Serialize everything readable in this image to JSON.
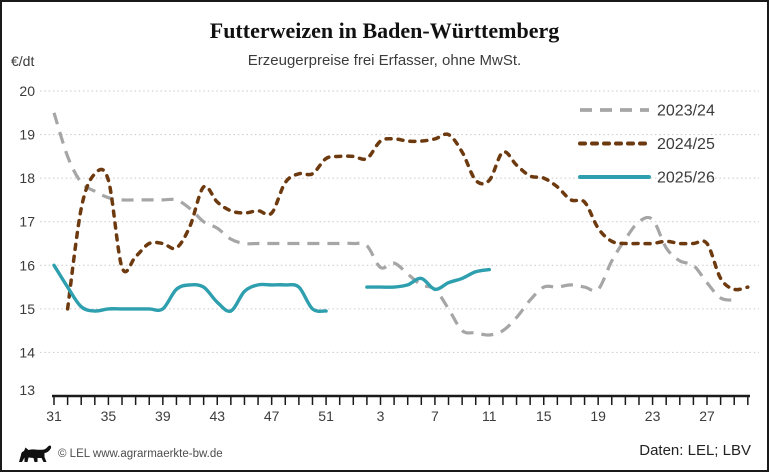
{
  "header": {
    "title": "Futterweizen in Baden-Württemberg",
    "subtitle": "Erzeugerpreise frei Erfasser, ohne MwSt.",
    "y_unit": "€/dt"
  },
  "footer": {
    "copyright": "© LEL www.agrarmaerkte-bw.de",
    "source": "Daten: LEL; LBV"
  },
  "colors": {
    "axis": "#1a1a1a",
    "grid": "#c9c9c9",
    "text": "#3c3c3c",
    "series_2023_24": "#a6a6a6",
    "series_2024_25": "#6d3a10",
    "series_2025_26": "#2e9fae"
  },
  "chart_data": {
    "type": "line",
    "title": "Futterweizen in Baden-Württemberg",
    "subtitle": "Erzeugerpreise frei Erfasser, ohne MwSt.",
    "ylabel": "€/dt",
    "ylim": [
      13,
      20
    ],
    "yticks": [
      13,
      14,
      15,
      16,
      17,
      18,
      19,
      20
    ],
    "grid": "horizontal dotted",
    "legend_position": "top-right",
    "x_weeks": [
      31,
      32,
      33,
      34,
      35,
      36,
      37,
      38,
      39,
      40,
      41,
      42,
      43,
      44,
      45,
      46,
      47,
      48,
      49,
      50,
      51,
      52,
      1,
      2,
      3,
      4,
      5,
      6,
      7,
      8,
      9,
      10,
      11,
      12,
      13,
      14,
      15,
      16,
      17,
      18,
      19,
      20,
      21,
      22,
      23,
      24,
      25,
      26,
      27,
      28,
      29,
      30
    ],
    "xtick_every": 4,
    "xtick_labels": [
      31,
      35,
      39,
      43,
      47,
      51,
      3,
      7,
      11,
      15,
      19,
      23,
      27
    ],
    "series": [
      {
        "name": "2023/24",
        "color": "#a6a6a6",
        "style": "dashed-long",
        "values": [
          19.5,
          18.5,
          17.9,
          17.7,
          17.55,
          17.5,
          17.5,
          17.5,
          17.5,
          17.5,
          17.3,
          17.0,
          16.85,
          16.6,
          16.5,
          16.5,
          16.5,
          16.5,
          16.5,
          16.5,
          16.5,
          16.5,
          16.5,
          16.45,
          15.95,
          16.05,
          15.8,
          15.55,
          15.45,
          15.0,
          14.5,
          14.45,
          14.4,
          14.5,
          14.8,
          15.2,
          15.5,
          15.5,
          15.55,
          15.5,
          15.45,
          16.1,
          16.6,
          17.0,
          17.05,
          16.4,
          16.1,
          16.0,
          15.6,
          15.25,
          15.2,
          null
        ]
      },
      {
        "name": "2024/25",
        "color": "#6d3a10",
        "style": "dashed-short",
        "values": [
          null,
          15.0,
          17.3,
          18.1,
          17.95,
          15.95,
          16.2,
          16.5,
          16.5,
          16.4,
          16.9,
          17.8,
          17.45,
          17.25,
          17.2,
          17.25,
          17.2,
          17.9,
          18.1,
          18.1,
          18.45,
          18.5,
          18.5,
          18.45,
          18.85,
          18.9,
          18.85,
          18.85,
          18.9,
          19.0,
          18.6,
          17.95,
          17.95,
          18.6,
          18.3,
          18.05,
          18.0,
          17.8,
          17.5,
          17.45,
          16.85,
          16.55,
          16.5,
          16.5,
          16.5,
          16.55,
          16.5,
          16.5,
          16.5,
          15.7,
          15.45,
          15.5
        ]
      },
      {
        "name": "2025/26",
        "color": "#2e9fae",
        "style": "solid",
        "values": [
          16.0,
          15.5,
          15.05,
          14.95,
          15.0,
          15.0,
          15.0,
          15.0,
          15.0,
          15.45,
          15.55,
          15.5,
          15.15,
          14.95,
          15.4,
          15.55,
          15.55,
          15.55,
          15.5,
          15.0,
          14.95,
          null,
          null,
          15.5,
          15.5,
          15.5,
          15.55,
          15.7,
          15.45,
          15.6,
          15.7,
          15.85,
          15.9,
          null,
          null,
          null,
          null,
          null,
          null,
          null,
          null,
          null,
          null,
          null,
          null,
          null,
          null,
          null,
          null,
          null,
          null,
          null
        ]
      }
    ]
  }
}
